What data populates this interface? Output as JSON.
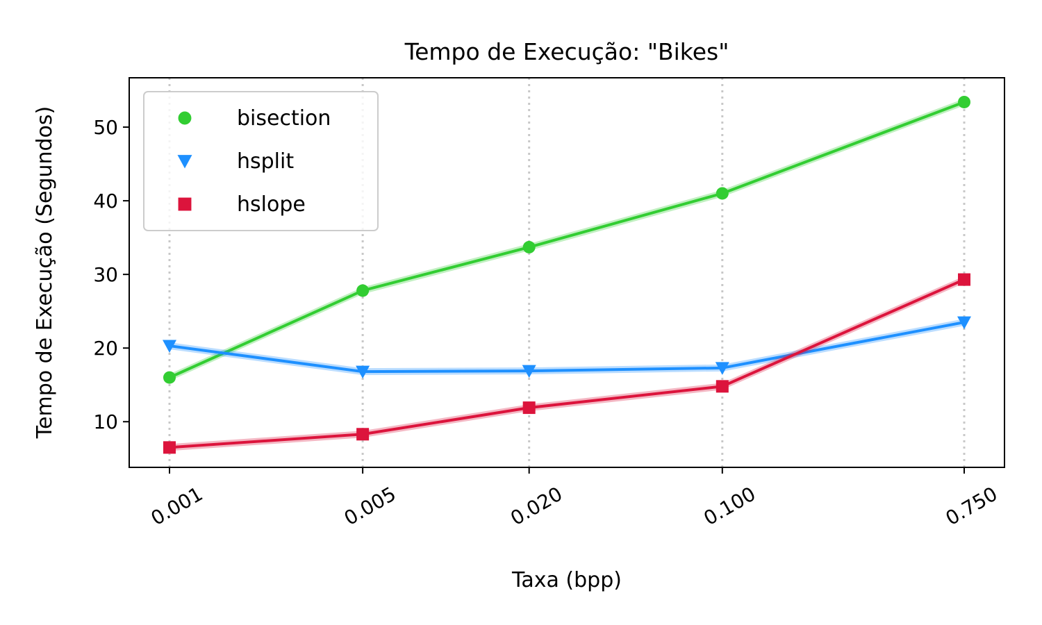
{
  "chart_data": {
    "type": "line",
    "title": "Tempo de Execução: \"Bikes\"",
    "xlabel": "Taxa (bpp)",
    "ylabel": "Tempo de Execução (Segundos)",
    "x": [
      0.001,
      0.005,
      0.02,
      0.1,
      0.75
    ],
    "x_scale": "log",
    "xticks": [
      0.001,
      0.005,
      0.02,
      0.1,
      0.75
    ],
    "xtick_labels": [
      "0.001",
      "0.005",
      "0.020",
      "0.100",
      "0.750"
    ],
    "ylim": [
      3.8,
      56.7
    ],
    "yticks": [
      10,
      20,
      30,
      40,
      50
    ],
    "grid": "x-dotted",
    "legend": "top-left",
    "series": [
      {
        "name": "bisection",
        "color": "#32cd32",
        "marker": "circle",
        "values": [
          16.0,
          27.8,
          33.7,
          41.0,
          53.4
        ]
      },
      {
        "name": "hsplit",
        "color": "#1e90ff",
        "marker": "triangle-down",
        "values": [
          20.3,
          16.8,
          16.9,
          17.3,
          23.5
        ]
      },
      {
        "name": "hslope",
        "color": "#dc143c",
        "marker": "square",
        "values": [
          6.5,
          8.3,
          11.9,
          14.8,
          29.3
        ]
      }
    ]
  }
}
